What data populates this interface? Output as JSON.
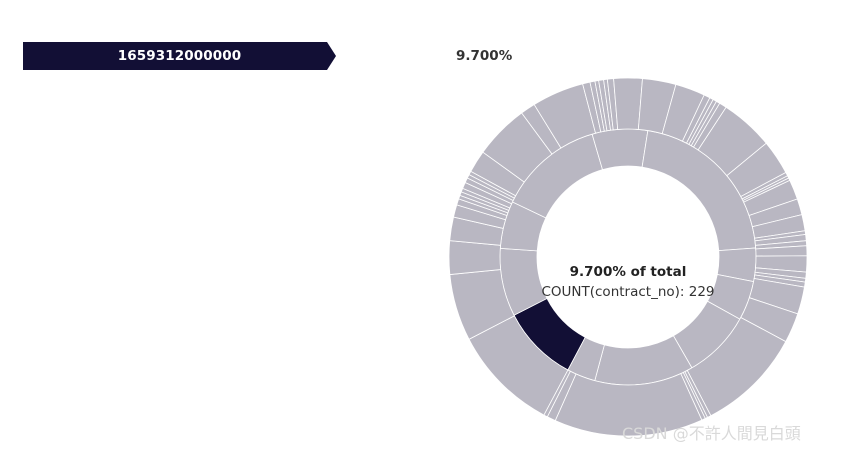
{
  "breadcrumb": {
    "label": "1659312000000",
    "color": "#120f35"
  },
  "header": {
    "percentage": "9.700%"
  },
  "tooltip": {
    "percentage": "9.700% of total",
    "metric": "COUNT(contract_no): 229"
  },
  "watermark": "CSDN @不許人間見白頭",
  "colors": {
    "selected": "#120f35",
    "dimmed": "#b9b7c2",
    "divider": "#ffffff"
  },
  "chart_data": {
    "type": "sunburst",
    "metric": "COUNT(contract_no)",
    "selected": {
      "label": "1659312000000",
      "value": 229,
      "percent_of_total": 9.7
    },
    "inner_ring_percent_shares": [
      9.7,
      8.6,
      6.0,
      13.4,
      7.0,
      21.4,
      4.2,
      5.0,
      8.6,
      12.5,
      3.6
    ],
    "outer_ring_percent_shares": [
      8.6,
      5.4,
      2.7,
      1.9,
      1.0,
      0.5,
      0.3,
      0.3,
      0.3,
      0.5,
      0.4,
      0.3,
      0.3,
      1.8,
      4.4,
      1.2,
      4.2,
      0.6,
      0.4,
      0.3,
      0.4,
      0.3,
      0.5,
      2.3,
      2.7,
      2.4,
      0.5,
      0.3,
      0.3,
      0.3,
      0.6,
      4.3,
      2.8,
      0.3,
      0.2,
      0.2,
      1.6,
      1.3,
      1.3,
      0.3,
      0.5,
      0.4,
      0.8,
      1.3,
      0.5,
      0.3,
      0.4,
      2.2,
      2.4,
      8.5,
      0.3,
      0.2,
      0.3,
      12.0,
      0.7,
      0.3
    ]
  }
}
